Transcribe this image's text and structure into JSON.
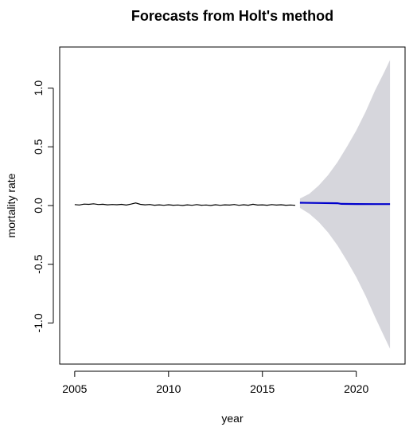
{
  "chart_data": {
    "type": "line",
    "title": "Forecasts from Holt's method",
    "xlabel": "year",
    "ylabel": "mortality rate",
    "xlim": [
      2004.2,
      2022.6
    ],
    "ylim": [
      -1.35,
      1.35
    ],
    "x_ticks": [
      2005,
      2010,
      2015,
      2020
    ],
    "x_tick_labels": [
      "2005",
      "2010",
      "2015",
      "2020"
    ],
    "y_ticks": [
      -1.0,
      -0.5,
      0.0,
      0.5,
      1.0
    ],
    "y_tick_labels": [
      "-1.0",
      "-0.5",
      "0.0",
      "0.5",
      "1.0"
    ],
    "grid": false,
    "legend": "none",
    "colors": {
      "observed": "#000000",
      "forecast": "#0000cc",
      "interval": "#d6d6dc"
    },
    "series": [
      {
        "x": [
          2005.0,
          2005.25,
          2005.5,
          2005.75,
          2006.0,
          2006.25,
          2006.5,
          2006.75,
          2007.0,
          2007.25,
          2007.5,
          2007.75,
          2008.0,
          2008.25,
          2008.5,
          2008.75,
          2009.0,
          2009.25,
          2009.5,
          2009.75,
          2010.0,
          2010.25,
          2010.5,
          2010.75,
          2011.0,
          2011.25,
          2011.5,
          2011.75,
          2012.0,
          2012.25,
          2012.5,
          2012.75,
          2013.0,
          2013.25,
          2013.5,
          2013.75,
          2014.0,
          2014.25,
          2014.5,
          2014.75,
          2015.0,
          2015.25,
          2015.5,
          2015.75,
          2016.0,
          2016.25,
          2016.5,
          2016.75
        ],
        "values": [
          0.008,
          0.005,
          0.012,
          0.01,
          0.015,
          0.009,
          0.011,
          0.006,
          0.009,
          0.007,
          0.01,
          0.004,
          0.012,
          0.022,
          0.01,
          0.006,
          0.009,
          0.003,
          0.006,
          0.002,
          0.007,
          0.003,
          0.005,
          0.001,
          0.006,
          0.002,
          0.008,
          0.003,
          0.005,
          0.001,
          0.007,
          0.002,
          0.006,
          0.004,
          0.009,
          0.002,
          0.007,
          0.003,
          0.011,
          0.004,
          0.006,
          0.003,
          0.008,
          0.004,
          0.007,
          0.003,
          0.005,
          0.002
        ]
      },
      {
        "x": [
          2017.0,
          2018.0,
          2019.0,
          2019.2,
          2020.0,
          2021.0,
          2021.8
        ],
        "values": [
          0.024,
          0.022,
          0.02,
          0.014,
          0.013,
          0.012,
          0.012
        ]
      }
    ],
    "prediction_interval": {
      "x": [
        2017.0,
        2017.5,
        2018.0,
        2018.5,
        2019.0,
        2019.5,
        2020.0,
        2020.5,
        2021.0,
        2021.5,
        2021.8
      ],
      "lower": [
        -0.02,
        -0.07,
        -0.14,
        -0.23,
        -0.34,
        -0.47,
        -0.61,
        -0.77,
        -0.95,
        -1.12,
        -1.22
      ],
      "upper": [
        0.06,
        0.1,
        0.17,
        0.26,
        0.37,
        0.5,
        0.64,
        0.8,
        0.98,
        1.14,
        1.24
      ]
    }
  }
}
